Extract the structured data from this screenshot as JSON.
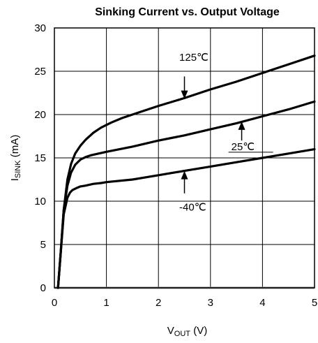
{
  "chart_data": {
    "type": "line",
    "title": "Sinking Current vs. Output Voltage",
    "xlabel": {
      "main": "V",
      "sub": "OUT",
      "unit": " (V)"
    },
    "ylabel": {
      "main": "I",
      "sub": "SINK",
      "unit": " (mA)"
    },
    "xlim": [
      0,
      5
    ],
    "ylim": [
      0,
      30
    ],
    "xticks": [
      0,
      1,
      2,
      3,
      4,
      5
    ],
    "yticks": [
      0,
      5,
      10,
      15,
      20,
      25,
      30
    ],
    "grid": true,
    "legend": "none",
    "series": [
      {
        "name": "125℃",
        "x": [
          0.07,
          0.12,
          0.18,
          0.25,
          0.32,
          0.4,
          0.5,
          0.6,
          0.75,
          0.9,
          1.1,
          1.3,
          1.6,
          2.0,
          2.5,
          3.0,
          3.5,
          4.0,
          4.5,
          5.0
        ],
        "y": [
          0,
          4,
          9,
          12.5,
          14.3,
          15.5,
          16.4,
          17.1,
          17.9,
          18.5,
          19.1,
          19.6,
          20.2,
          21.0,
          21.9,
          22.9,
          23.8,
          24.8,
          25.8,
          26.8
        ]
      },
      {
        "name": "25℃",
        "x": [
          0.07,
          0.12,
          0.18,
          0.25,
          0.32,
          0.4,
          0.5,
          0.6,
          0.7,
          0.85,
          1.0,
          1.5,
          2.0,
          2.5,
          3.0,
          3.5,
          4.0,
          4.5,
          5.0
        ],
        "y": [
          0,
          4,
          9,
          11.8,
          13.3,
          14.2,
          14.8,
          15.1,
          15.3,
          15.5,
          15.7,
          16.3,
          17.0,
          17.6,
          18.3,
          19.0,
          19.8,
          20.6,
          21.5
        ]
      },
      {
        "name": "-40℃",
        "x": [
          0.07,
          0.12,
          0.18,
          0.25,
          0.3,
          0.35,
          0.42,
          0.5,
          0.6,
          0.75,
          0.9,
          1.0,
          1.5,
          2.0,
          2.5,
          3.0,
          3.5,
          4.0,
          4.5,
          5.0
        ],
        "y": [
          0,
          4,
          8.5,
          10.4,
          11.0,
          11.3,
          11.5,
          11.7,
          11.8,
          12.0,
          12.1,
          12.2,
          12.5,
          13.0,
          13.5,
          14.0,
          14.5,
          15.0,
          15.5,
          16.0
        ]
      }
    ],
    "annotations": [
      {
        "text": "125℃",
        "series": 0,
        "text_at": [
          2.4,
          26.2
        ],
        "arrow_from": [
          2.5,
          24.4
        ],
        "arrow_to": [
          2.5,
          21.8
        ]
      },
      {
        "text": "25℃",
        "series": 1,
        "text_at": [
          3.4,
          15.9
        ],
        "arrow_from": [
          3.6,
          17.0
        ],
        "arrow_to": [
          3.6,
          19.2
        ]
      },
      {
        "text": "-40℃",
        "series": 2,
        "text_at": [
          2.4,
          8.9
        ],
        "arrow_from": [
          2.5,
          10.9
        ],
        "arrow_to": [
          2.5,
          13.5
        ]
      }
    ]
  }
}
